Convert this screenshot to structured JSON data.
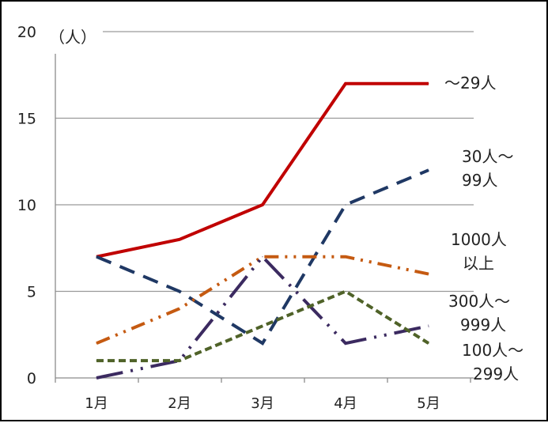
{
  "chart_data": {
    "type": "line",
    "title": "",
    "unit_label": "（人）",
    "categories": [
      "1月",
      "2月",
      "3月",
      "4月",
      "5月"
    ],
    "ylim": [
      0,
      20
    ],
    "yticks": [
      0,
      5,
      10,
      15,
      20
    ],
    "grid": true,
    "series": [
      {
        "name": "〜29人",
        "label_lines": [
          "〜29人"
        ],
        "values": [
          7,
          8,
          10,
          17,
          17
        ],
        "color": "#c00000",
        "dash": "solid"
      },
      {
        "name": "30人〜99人",
        "label_lines": [
          "30人〜",
          "99人"
        ],
        "values": [
          7,
          5,
          2,
          10,
          12
        ],
        "color": "#1f3864",
        "dash": "dash"
      },
      {
        "name": "1000人以上",
        "label_lines": [
          "1000人",
          "以上"
        ],
        "values": [
          2,
          4,
          7,
          7,
          6
        ],
        "color": "#c55a11",
        "dash": "dashdotdot"
      },
      {
        "name": "300人〜999人",
        "label_lines": [
          "300人〜",
          "999人"
        ],
        "values": [
          0,
          1,
          7,
          2,
          3
        ],
        "color": "#3b2a60",
        "dash": "longdashdotdot"
      },
      {
        "name": "100人〜299人",
        "label_lines": [
          "100人〜",
          "299人"
        ],
        "values": [
          1,
          1,
          3,
          5,
          2
        ],
        "color": "#4f6228",
        "dash": "shortdash"
      }
    ]
  }
}
